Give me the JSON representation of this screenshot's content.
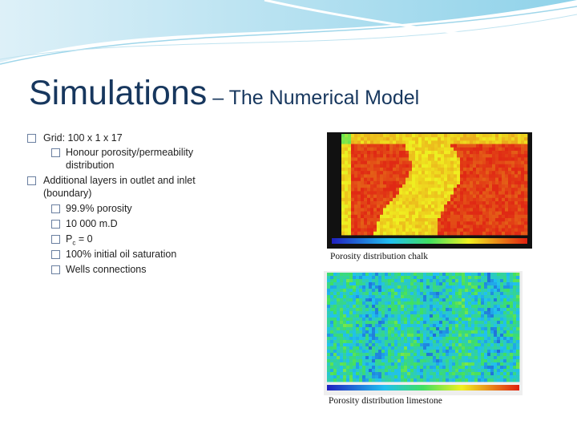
{
  "title": {
    "main": "Simulations",
    "rest": " – The Numerical Model"
  },
  "bullets": [
    {
      "text": "Grid: 100 x 1 x 17",
      "sub": [
        {
          "text": "Honour porosity/permeability distribution"
        }
      ]
    },
    {
      "text": "Additional layers in outlet and inlet (boundary)",
      "sub": [
        {
          "text": "99.9% porosity"
        },
        {
          "text": "10 000 m.D"
        },
        {
          "main": "P",
          "subscript": "c",
          "rest": " = 0"
        },
        {
          "text": "100% initial oil saturation"
        },
        {
          "text": "Wells connections"
        }
      ]
    }
  ],
  "figures": [
    {
      "caption": "Porosity distribution chalk"
    },
    {
      "caption": "Porosity distribution limestone"
    }
  ]
}
